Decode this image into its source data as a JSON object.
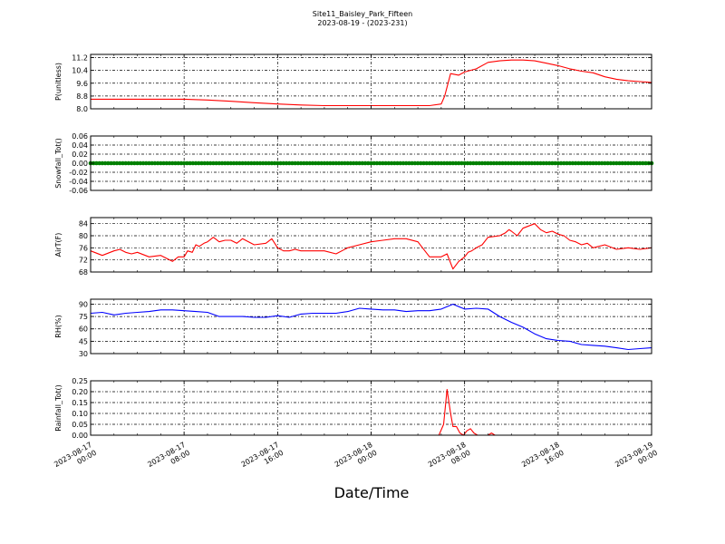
{
  "figure": {
    "title_line1": "Site11_Baisley_Park_Fifteen",
    "title_line2": "2023-08-19 - (2023-231)",
    "xlabel": "Date/Time"
  },
  "chart_data": [
    {
      "type": "line",
      "ylabel": "P(unitless)",
      "ylim": [
        8.0,
        11.4
      ],
      "yticks": [
        "11.2",
        "10.4",
        "9.6",
        "8.8",
        "8.0"
      ],
      "ytick_values": [
        11.2,
        10.4,
        9.6,
        8.8,
        8.0
      ],
      "color": "#ff0000",
      "grid": true,
      "x": [
        0,
        4,
        8,
        10,
        12,
        14,
        16,
        18,
        20,
        22,
        24,
        26,
        28,
        29,
        30,
        30.3,
        30.8,
        31.5,
        32,
        32.5,
        33,
        34,
        35,
        36,
        37,
        38,
        39,
        40,
        41,
        42,
        43,
        44,
        45,
        46,
        47,
        48
      ],
      "y": [
        8.6,
        8.6,
        8.6,
        8.55,
        8.47,
        8.38,
        8.3,
        8.24,
        8.2,
        8.2,
        8.2,
        8.2,
        8.2,
        8.2,
        8.3,
        8.8,
        10.2,
        10.1,
        10.3,
        10.4,
        10.5,
        10.9,
        11.0,
        11.05,
        11.05,
        11.0,
        10.85,
        10.7,
        10.5,
        10.35,
        10.25,
        10.0,
        9.85,
        9.75,
        9.7,
        9.65
      ]
    },
    {
      "type": "scatter",
      "ylabel": "Snowfall_Tot()",
      "ylim": [
        -0.06,
        0.06
      ],
      "yticks": [
        "0.06",
        "0.04",
        "0.02",
        "0.00",
        "-0.02",
        "-0.04",
        "-0.06"
      ],
      "ytick_values": [
        0.06,
        0.04,
        0.02,
        0.0,
        -0.02,
        -0.04,
        -0.06
      ],
      "color": "#008000",
      "grid": true,
      "x_start": 0,
      "x_end": 48,
      "x_step": 0.25,
      "constant_value": 0.0
    },
    {
      "type": "line",
      "ylabel": "AirT(F)",
      "ylim": [
        68,
        86
      ],
      "yticks": [
        "84",
        "80",
        "76",
        "72",
        "68"
      ],
      "ytick_values": [
        84,
        80,
        76,
        72,
        68
      ],
      "color": "#ff0000",
      "grid": true,
      "x": [
        0,
        1,
        2,
        2.5,
        3,
        3.5,
        4,
        5,
        6,
        7,
        7.5,
        8,
        8.3,
        8.7,
        9,
        9.3,
        9.7,
        10,
        10.5,
        11,
        11.5,
        12,
        12.5,
        13,
        14,
        15,
        15.5,
        16,
        16.5,
        17,
        17.5,
        18,
        19,
        20,
        21,
        22,
        23,
        24,
        25,
        26,
        27,
        28,
        29,
        30,
        30.5,
        31,
        31.5,
        32,
        32.3,
        32.6,
        33,
        33.5,
        34,
        35,
        35.5,
        35.8,
        36,
        36.5,
        37,
        38,
        38.5,
        39,
        39.5,
        40,
        40.5,
        41,
        41.5,
        42,
        42.5,
        43,
        44,
        45,
        46,
        47,
        48
      ],
      "y": [
        75,
        73.5,
        75,
        75.5,
        74.5,
        74,
        74.5,
        73,
        73.5,
        71.5,
        73,
        73,
        75,
        74.5,
        77,
        76.5,
        77.5,
        78,
        79.5,
        78,
        78.5,
        78.5,
        77.5,
        79,
        77,
        77.5,
        79,
        76,
        75,
        75,
        75.5,
        75,
        75,
        75,
        74,
        76,
        77,
        78,
        78.5,
        79,
        79,
        78,
        73,
        73,
        74,
        69,
        71.5,
        73,
        74.5,
        75,
        76,
        77,
        79.5,
        80,
        81,
        82,
        81.5,
        80,
        82.5,
        84,
        82,
        81,
        81.5,
        80.5,
        80,
        78.5,
        78,
        77,
        77.5,
        76,
        77,
        75.5,
        76,
        75.5,
        76
      ]
    },
    {
      "type": "line",
      "ylabel": "RH(%)",
      "ylim": [
        30,
        96
      ],
      "yticks": [
        "90",
        "75",
        "60",
        "45",
        "30"
      ],
      "ytick_values": [
        90,
        75,
        60,
        45,
        30
      ],
      "color": "#0000ff",
      "grid": true,
      "x": [
        0,
        1,
        2,
        3,
        4,
        5,
        6,
        7,
        8,
        9,
        10,
        11,
        12,
        13,
        14,
        15,
        16,
        17,
        18,
        19,
        20,
        21,
        22,
        23,
        24,
        25,
        26,
        27,
        28,
        29,
        30,
        31,
        32,
        33,
        34,
        35,
        36,
        37,
        38,
        39,
        40,
        41,
        42,
        43,
        44,
        45,
        46,
        47,
        48
      ],
      "y": [
        79,
        80,
        77,
        79,
        80,
        81,
        83,
        83,
        82,
        81,
        80,
        75,
        75,
        75,
        74,
        74,
        76,
        74,
        78,
        79,
        79,
        79,
        81,
        85,
        84,
        83,
        83,
        81,
        82,
        82,
        84,
        90,
        84,
        85,
        84,
        75,
        68,
        62,
        54,
        48,
        46,
        45,
        41,
        40,
        39,
        37,
        35,
        36,
        37
      ]
    },
    {
      "type": "line",
      "ylabel": "Rainfall_Tot()",
      "ylim": [
        0.0,
        0.25
      ],
      "yticks": [
        "0.25",
        "0.20",
        "0.15",
        "0.10",
        "0.05",
        "0.00"
      ],
      "ytick_values": [
        0.25,
        0.2,
        0.15,
        0.1,
        0.05,
        0.0
      ],
      "color": "#ff0000",
      "grid": true,
      "x": [
        0,
        29.8,
        30.2,
        30.5,
        30.8,
        31.0,
        31.3,
        31.6,
        31.9,
        32.2,
        32.5,
        32.8,
        33.1,
        33.4,
        34.0,
        34.3,
        34.6,
        35.0,
        48
      ],
      "y": [
        0,
        0,
        0.05,
        0.21,
        0.1,
        0.04,
        0.04,
        0.01,
        0.0,
        0.02,
        0.03,
        0.01,
        0.0,
        0.0,
        0.0,
        0.01,
        0.0,
        0.0,
        0
      ]
    }
  ],
  "x_axis": {
    "range_hours": [
      0,
      48
    ],
    "tick_hours": [
      0,
      8,
      16,
      24,
      32,
      40,
      48
    ],
    "tick_dates": [
      "2023-08-17",
      "2023-08-17",
      "2023-08-17",
      "2023-08-18",
      "2023-08-18",
      "2023-08-18",
      "2023-08-19"
    ],
    "tick_times": [
      "00:00",
      "08:00",
      "16:00",
      "00:00",
      "08:00",
      "16:00",
      "00:00"
    ]
  }
}
